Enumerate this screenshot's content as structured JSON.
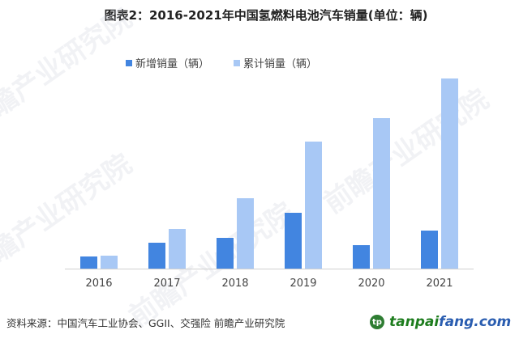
{
  "title": "图表2：2016-2021年中国氢燃料电池汽车销量(单位：辆)",
  "legend": [
    {
      "label": "新增销量（辆）",
      "color": "#4285e0"
    },
    {
      "label": "累计销量（辆）",
      "color": "#a8c8f5"
    }
  ],
  "source": "资料来源：中国汽车工业协会、GGII、交强险 前瞻产业研究院",
  "brand": {
    "logo": "tp",
    "part1": "tanpai",
    "part2": "fang.com"
  },
  "watermark": "前瞻产业研究院",
  "chart_data": {
    "type": "bar",
    "title": "图表2：2016-2021年中国氢燃料电池汽车销量(单位：辆)",
    "xlabel": "",
    "ylabel": "",
    "categories": [
      "2016",
      "2017",
      "2018",
      "2019",
      "2020",
      "2021"
    ],
    "series": [
      {
        "name": "新增销量（辆）",
        "color": "#4285e0",
        "values": [
          600,
          1260,
          1500,
          2700,
          1150,
          1850
        ]
      },
      {
        "name": "累计销量（辆）",
        "color": "#a8c8f5",
        "values": [
          630,
          1900,
          3400,
          6150,
          7300,
          9200
        ]
      }
    ],
    "ylim": [
      0,
      9200
    ],
    "grid": false,
    "legend_position": "top"
  }
}
